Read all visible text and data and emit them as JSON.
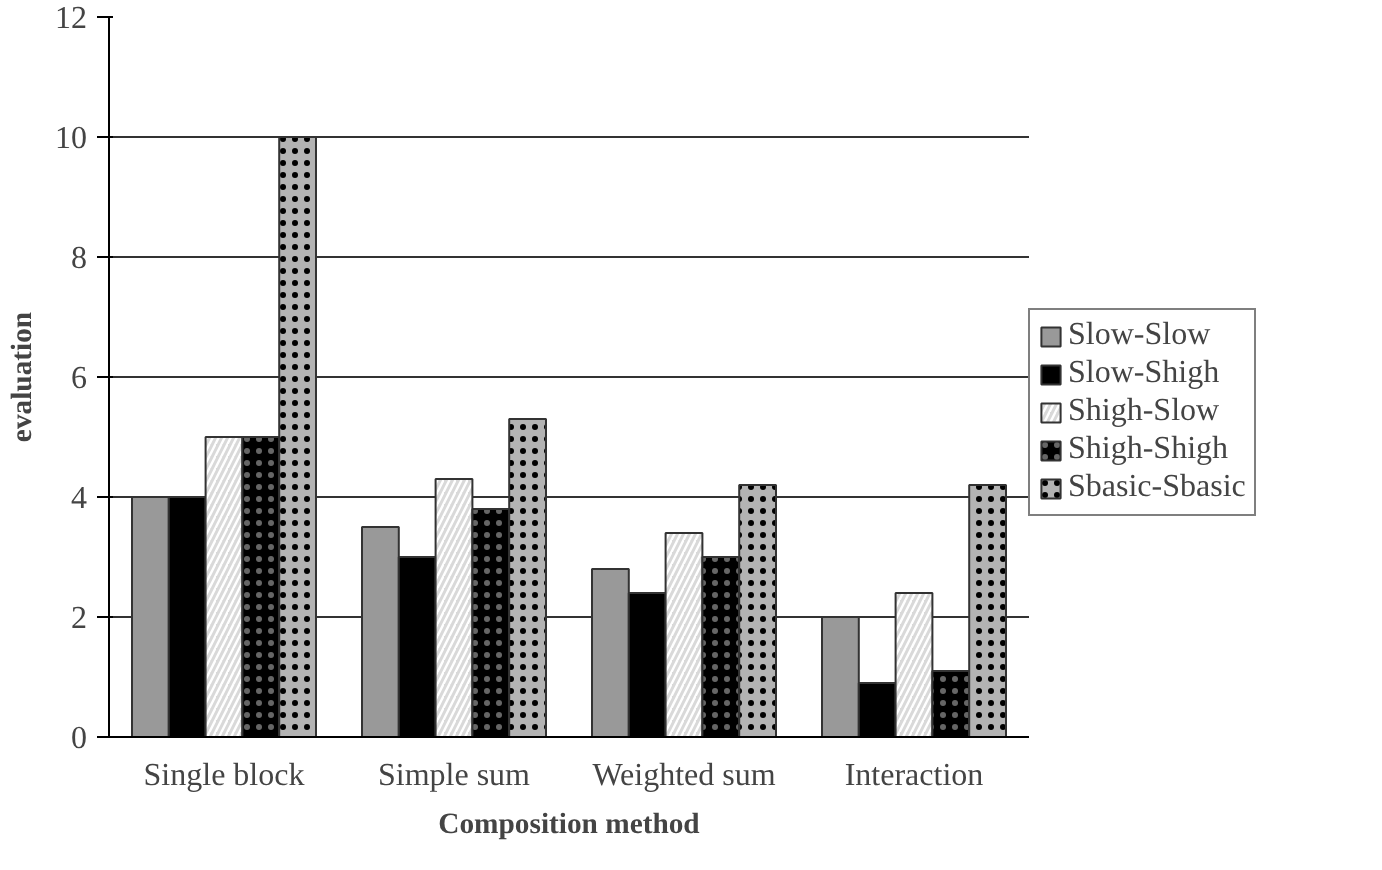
{
  "chart_data": {
    "type": "bar",
    "xlabel": "Composition method",
    "ylabel": "evaluation",
    "categories": [
      "Single block",
      "Simple sum",
      "Weighted sum",
      "Interaction"
    ],
    "series": [
      {
        "name": "Slow-Slow",
        "color": "#999999",
        "values": [
          4,
          3.5,
          2.8,
          2.0
        ]
      },
      {
        "name": "Slow-Shigh",
        "color": "#000000",
        "values": [
          4,
          3.0,
          2.4,
          0.9
        ]
      },
      {
        "name": "Shigh-Slow",
        "color": "#d9d9d9",
        "values": [
          5,
          4.3,
          3.4,
          2.4
        ]
      },
      {
        "name": "Shigh-Shigh",
        "color": "#000000",
        "values": [
          5,
          3.8,
          3.0,
          1.1
        ]
      },
      {
        "name": "Sbasic-Sbasic",
        "color": "#b3b3b3",
        "values": [
          10,
          5.3,
          4.2,
          4.2
        ]
      }
    ],
    "ylim": [
      0,
      12
    ],
    "yticks": [
      0,
      2,
      4,
      6,
      8,
      10,
      12
    ],
    "grid": "y",
    "legend": "right"
  }
}
